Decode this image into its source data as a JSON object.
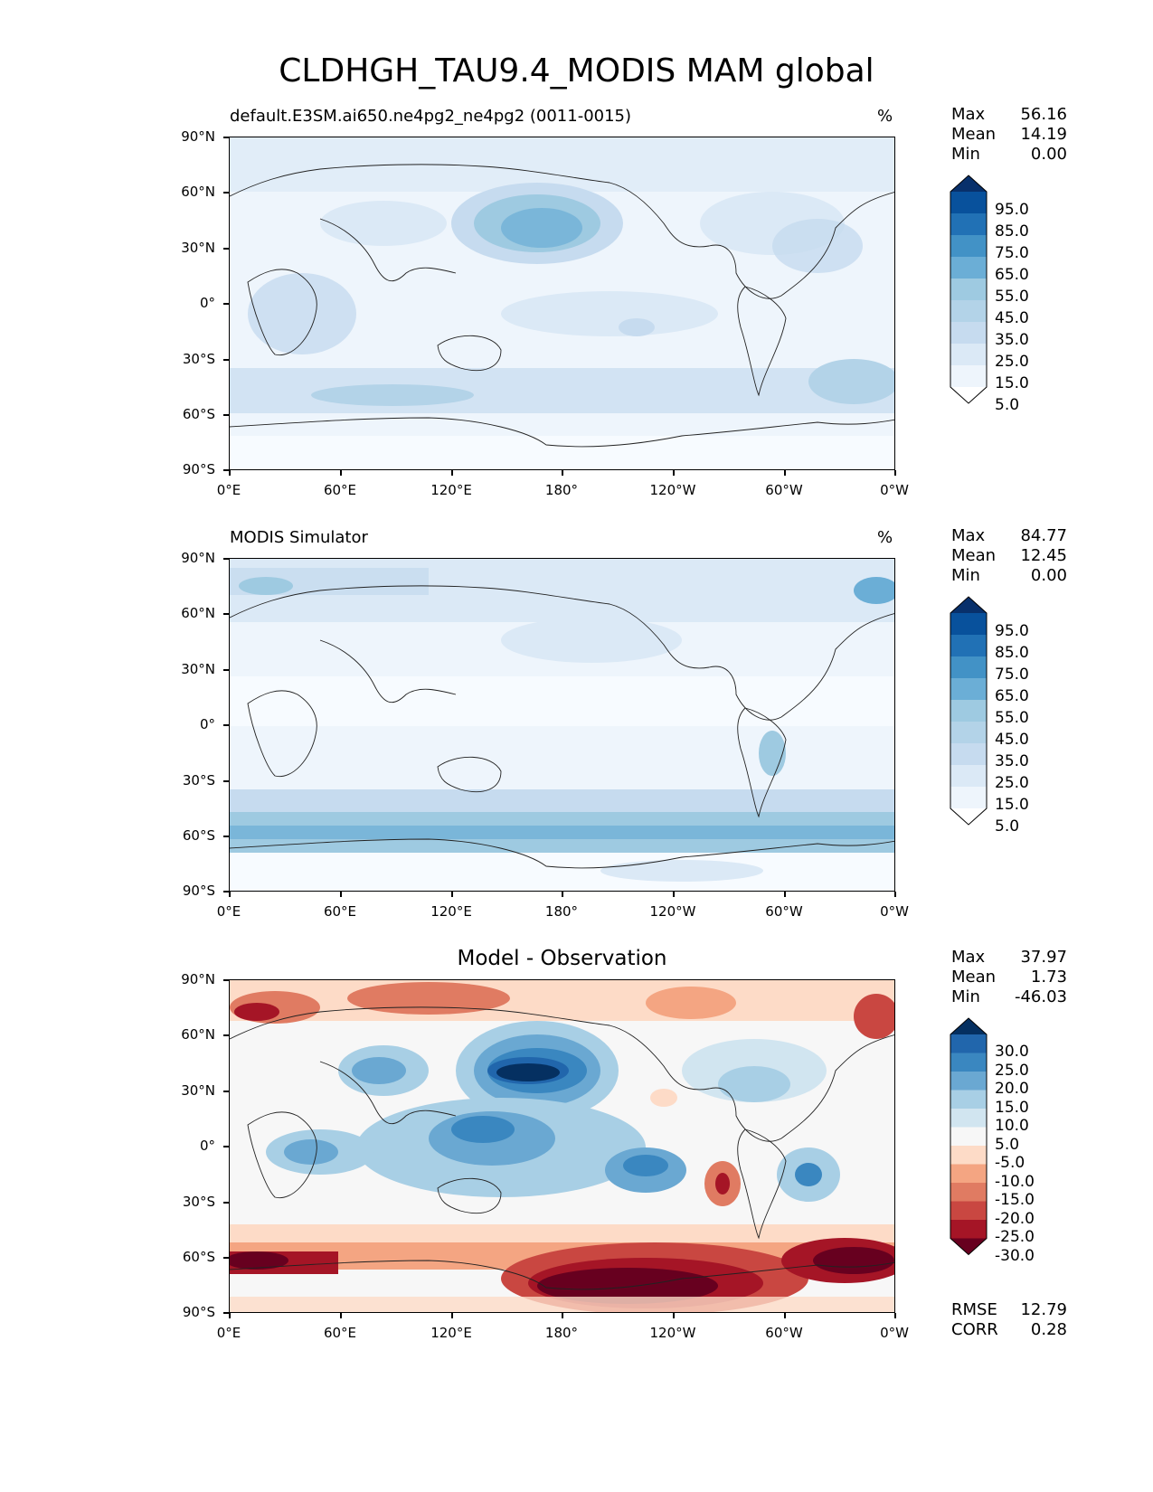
{
  "figure": {
    "title": "CLDHGH_TAU9.4_MODIS MAM global"
  },
  "axes": {
    "yticks": [
      "90°N",
      "60°N",
      "30°N",
      "0°",
      "30°S",
      "60°S",
      "90°S"
    ],
    "xticks": [
      "0°E",
      "60°E",
      "120°E",
      "180°",
      "120°W",
      "60°W",
      "0°W"
    ]
  },
  "panels": [
    {
      "title_left": "default.E3SM.ai650.ne4pg2_ne4pg2 (0011-0015)",
      "title_right": "%",
      "title_center": "",
      "stats": [
        {
          "label": "Max",
          "value": "56.16"
        },
        {
          "label": "Mean",
          "value": "14.19"
        },
        {
          "label": "Min",
          "value": "0.00"
        }
      ],
      "colorbar": {
        "labels": [
          "95.0",
          "85.0",
          "75.0",
          "65.0",
          "55.0",
          "45.0",
          "35.0",
          "25.0",
          "15.0",
          "5.0"
        ],
        "colors": [
          "#08306b",
          "#08519c",
          "#2171b5",
          "#4292c6",
          "#6baed6",
          "#9ecae1",
          "#b3d3e8",
          "#c6dbef",
          "#dbe9f6",
          "#eef5fc",
          "#ffffff"
        ]
      },
      "footer": []
    },
    {
      "title_left": "MODIS Simulator",
      "title_right": "%",
      "title_center": "",
      "stats": [
        {
          "label": "Max",
          "value": "84.77"
        },
        {
          "label": "Mean",
          "value": "12.45"
        },
        {
          "label": "Min",
          "value": "0.00"
        }
      ],
      "colorbar": {
        "labels": [
          "95.0",
          "85.0",
          "75.0",
          "65.0",
          "55.0",
          "45.0",
          "35.0",
          "25.0",
          "15.0",
          "5.0"
        ],
        "colors": [
          "#08306b",
          "#08519c",
          "#2171b5",
          "#4292c6",
          "#6baed6",
          "#9ecae1",
          "#b3d3e8",
          "#c6dbef",
          "#dbe9f6",
          "#eef5fc",
          "#ffffff"
        ]
      },
      "footer": []
    },
    {
      "title_left": "",
      "title_right": "",
      "title_center": "Model - Observation",
      "stats": [
        {
          "label": "Max",
          "value": "37.97"
        },
        {
          "label": "Mean",
          "value": "1.73"
        },
        {
          "label": "Min",
          "value": "-46.03"
        }
      ],
      "colorbar": {
        "labels": [
          "30.0",
          "25.0",
          "20.0",
          "15.0",
          "10.0",
          "5.0",
          "-5.0",
          "-10.0",
          "-15.0",
          "-20.0",
          "-25.0",
          "-30.0"
        ],
        "colors": [
          "#053061",
          "#2166ac",
          "#3a87c0",
          "#6aa8d2",
          "#a8cfe5",
          "#d1e5f0",
          "#f7f7f7",
          "#fddbc7",
          "#f4a582",
          "#e07b62",
          "#c94741",
          "#a51526",
          "#67001f"
        ]
      },
      "footer": [
        {
          "label": "RMSE",
          "value": "12.79"
        },
        {
          "label": "CORR",
          "value": "0.28"
        }
      ]
    }
  ]
}
